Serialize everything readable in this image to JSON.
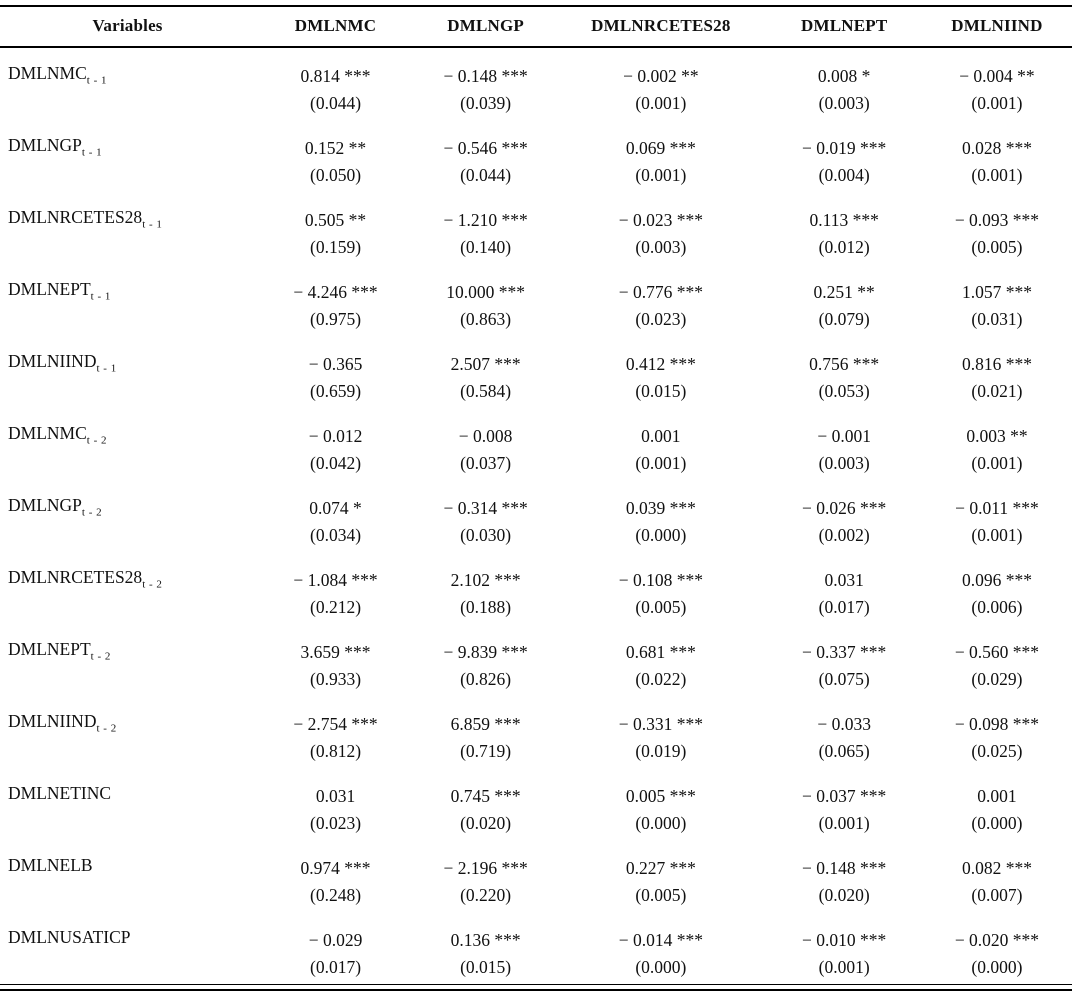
{
  "colors": {
    "text": "#111111",
    "background": "#ffffff",
    "rule": "#000000"
  },
  "table": {
    "columns": [
      "Variables",
      "DMLNMC",
      "DMLNGP",
      "DMLNRCETES28",
      "DMLNEPT",
      "DMLNIIND"
    ],
    "rows": [
      {
        "label": {
          "base": "DMLNMC",
          "sub": "t - 1"
        },
        "cells": [
          {
            "value": "0.814",
            "stars": "***",
            "se": "(0.044)"
          },
          {
            "value": "− 0.148",
            "stars": "***",
            "se": "(0.039)"
          },
          {
            "value": "− 0.002",
            "stars": "**",
            "se": "(0.001)"
          },
          {
            "value": "0.008",
            "stars": "*",
            "se": "(0.003)"
          },
          {
            "value": "− 0.004",
            "stars": "**",
            "se": "(0.001)"
          }
        ]
      },
      {
        "label": {
          "base": "DMLNGP",
          "sub": "t - 1"
        },
        "cells": [
          {
            "value": "0.152",
            "stars": "**",
            "se": "(0.050)"
          },
          {
            "value": "− 0.546",
            "stars": "***",
            "se": "(0.044)"
          },
          {
            "value": "0.069",
            "stars": "***",
            "se": "(0.001)"
          },
          {
            "value": "− 0.019",
            "stars": "***",
            "se": "(0.004)"
          },
          {
            "value": "0.028",
            "stars": "***",
            "se": "(0.001)"
          }
        ]
      },
      {
        "label": {
          "base": "DMLNRCETES28",
          "sub": "t - 1"
        },
        "cells": [
          {
            "value": "0.505",
            "stars": "**",
            "se": "(0.159)"
          },
          {
            "value": "− 1.210",
            "stars": "***",
            "se": "(0.140)"
          },
          {
            "value": "− 0.023",
            "stars": "***",
            "se": "(0.003)"
          },
          {
            "value": "0.113",
            "stars": "***",
            "se": "(0.012)"
          },
          {
            "value": "− 0.093",
            "stars": "***",
            "se": "(0.005)"
          }
        ]
      },
      {
        "label": {
          "base": "DMLNEPT",
          "sub": "t - 1"
        },
        "cells": [
          {
            "value": "− 4.246",
            "stars": "***",
            "se": "(0.975)"
          },
          {
            "value": "10.000",
            "stars": "***",
            "se": "(0.863)"
          },
          {
            "value": "− 0.776",
            "stars": "***",
            "se": "(0.023)"
          },
          {
            "value": "0.251",
            "stars": "**",
            "se": "(0.079)"
          },
          {
            "value": "1.057",
            "stars": "***",
            "se": "(0.031)"
          }
        ]
      },
      {
        "label": {
          "base": "DMLNIIND",
          "sub": "t - 1"
        },
        "cells": [
          {
            "value": "− 0.365",
            "stars": "",
            "se": "(0.659)"
          },
          {
            "value": "2.507",
            "stars": "***",
            "se": "(0.584)"
          },
          {
            "value": "0.412",
            "stars": "***",
            "se": "(0.015)"
          },
          {
            "value": "0.756",
            "stars": "***",
            "se": "(0.053)"
          },
          {
            "value": "0.816",
            "stars": "***",
            "se": "(0.021)"
          }
        ]
      },
      {
        "label": {
          "base": "DMLNMC",
          "sub": "t - 2"
        },
        "cells": [
          {
            "value": "− 0.012",
            "stars": "",
            "se": "(0.042)"
          },
          {
            "value": "− 0.008",
            "stars": "",
            "se": "(0.037)"
          },
          {
            "value": "0.001",
            "stars": "",
            "se": "(0.001)"
          },
          {
            "value": "− 0.001",
            "stars": "",
            "se": "(0.003)"
          },
          {
            "value": "0.003",
            "stars": "**",
            "se": "(0.001)"
          }
        ]
      },
      {
        "label": {
          "base": "DMLNGP",
          "sub": "t - 2"
        },
        "cells": [
          {
            "value": "0.074",
            "stars": "*",
            "se": "(0.034)"
          },
          {
            "value": "− 0.314",
            "stars": "***",
            "se": "(0.030)"
          },
          {
            "value": "0.039",
            "stars": "***",
            "se": "(0.000)"
          },
          {
            "value": "− 0.026",
            "stars": "***",
            "se": "(0.002)"
          },
          {
            "value": "− 0.011",
            "stars": "***",
            "se": "(0.001)"
          }
        ]
      },
      {
        "label": {
          "base": "DMLNRCETES28",
          "sub": "t - 2"
        },
        "cells": [
          {
            "value": "− 1.084",
            "stars": "***",
            "se": "(0.212)"
          },
          {
            "value": "2.102",
            "stars": "***",
            "se": "(0.188)"
          },
          {
            "value": "− 0.108",
            "stars": "***",
            "se": "(0.005)"
          },
          {
            "value": "0.031",
            "stars": "",
            "se": "(0.017)"
          },
          {
            "value": "0.096",
            "stars": "***",
            "se": "(0.006)"
          }
        ]
      },
      {
        "label": {
          "base": "DMLNEPT",
          "sub": "t - 2"
        },
        "cells": [
          {
            "value": "3.659",
            "stars": "***",
            "se": "(0.933)"
          },
          {
            "value": "− 9.839",
            "stars": "***",
            "se": "(0.826)"
          },
          {
            "value": "0.681",
            "stars": "***",
            "se": "(0.022)"
          },
          {
            "value": "− 0.337",
            "stars": "***",
            "se": "(0.075)"
          },
          {
            "value": "− 0.560",
            "stars": "***",
            "se": "(0.029)"
          }
        ]
      },
      {
        "label": {
          "base": "DMLNIIND",
          "sub": "t - 2"
        },
        "cells": [
          {
            "value": "− 2.754",
            "stars": "***",
            "se": "(0.812)"
          },
          {
            "value": "6.859",
            "stars": "***",
            "se": "(0.719)"
          },
          {
            "value": "− 0.331",
            "stars": "***",
            "se": "(0.019)"
          },
          {
            "value": "− 0.033",
            "stars": "",
            "se": "(0.065)"
          },
          {
            "value": "− 0.098",
            "stars": "***",
            "se": "(0.025)"
          }
        ]
      },
      {
        "label": {
          "base": "DMLNETINC",
          "sub": ""
        },
        "cells": [
          {
            "value": "0.031",
            "stars": "",
            "se": "(0.023)"
          },
          {
            "value": "0.745",
            "stars": "***",
            "se": "(0.020)"
          },
          {
            "value": "0.005",
            "stars": "***",
            "se": "(0.000)"
          },
          {
            "value": "− 0.037",
            "stars": "***",
            "se": "(0.001)"
          },
          {
            "value": "0.001",
            "stars": "",
            "se": "(0.000)"
          }
        ]
      },
      {
        "label": {
          "base": "DMLNELB",
          "sub": ""
        },
        "cells": [
          {
            "value": "0.974",
            "stars": "***",
            "se": "(0.248)"
          },
          {
            "value": "− 2.196",
            "stars": "***",
            "se": "(0.220)"
          },
          {
            "value": "0.227",
            "stars": "***",
            "se": "(0.005)"
          },
          {
            "value": "− 0.148",
            "stars": "***",
            "se": "(0.020)"
          },
          {
            "value": "0.082",
            "stars": "***",
            "se": "(0.007)"
          }
        ]
      },
      {
        "label": {
          "base": "DMLNUSATICP",
          "sub": ""
        },
        "cells": [
          {
            "value": "− 0.029",
            "stars": "",
            "se": "(0.017)"
          },
          {
            "value": "0.136",
            "stars": "***",
            "se": "(0.015)"
          },
          {
            "value": "− 0.014",
            "stars": "***",
            "se": "(0.000)"
          },
          {
            "value": "− 0.010",
            "stars": "***",
            "se": "(0.001)"
          },
          {
            "value": "− 0.020",
            "stars": "***",
            "se": "(0.000)"
          }
        ]
      }
    ]
  }
}
